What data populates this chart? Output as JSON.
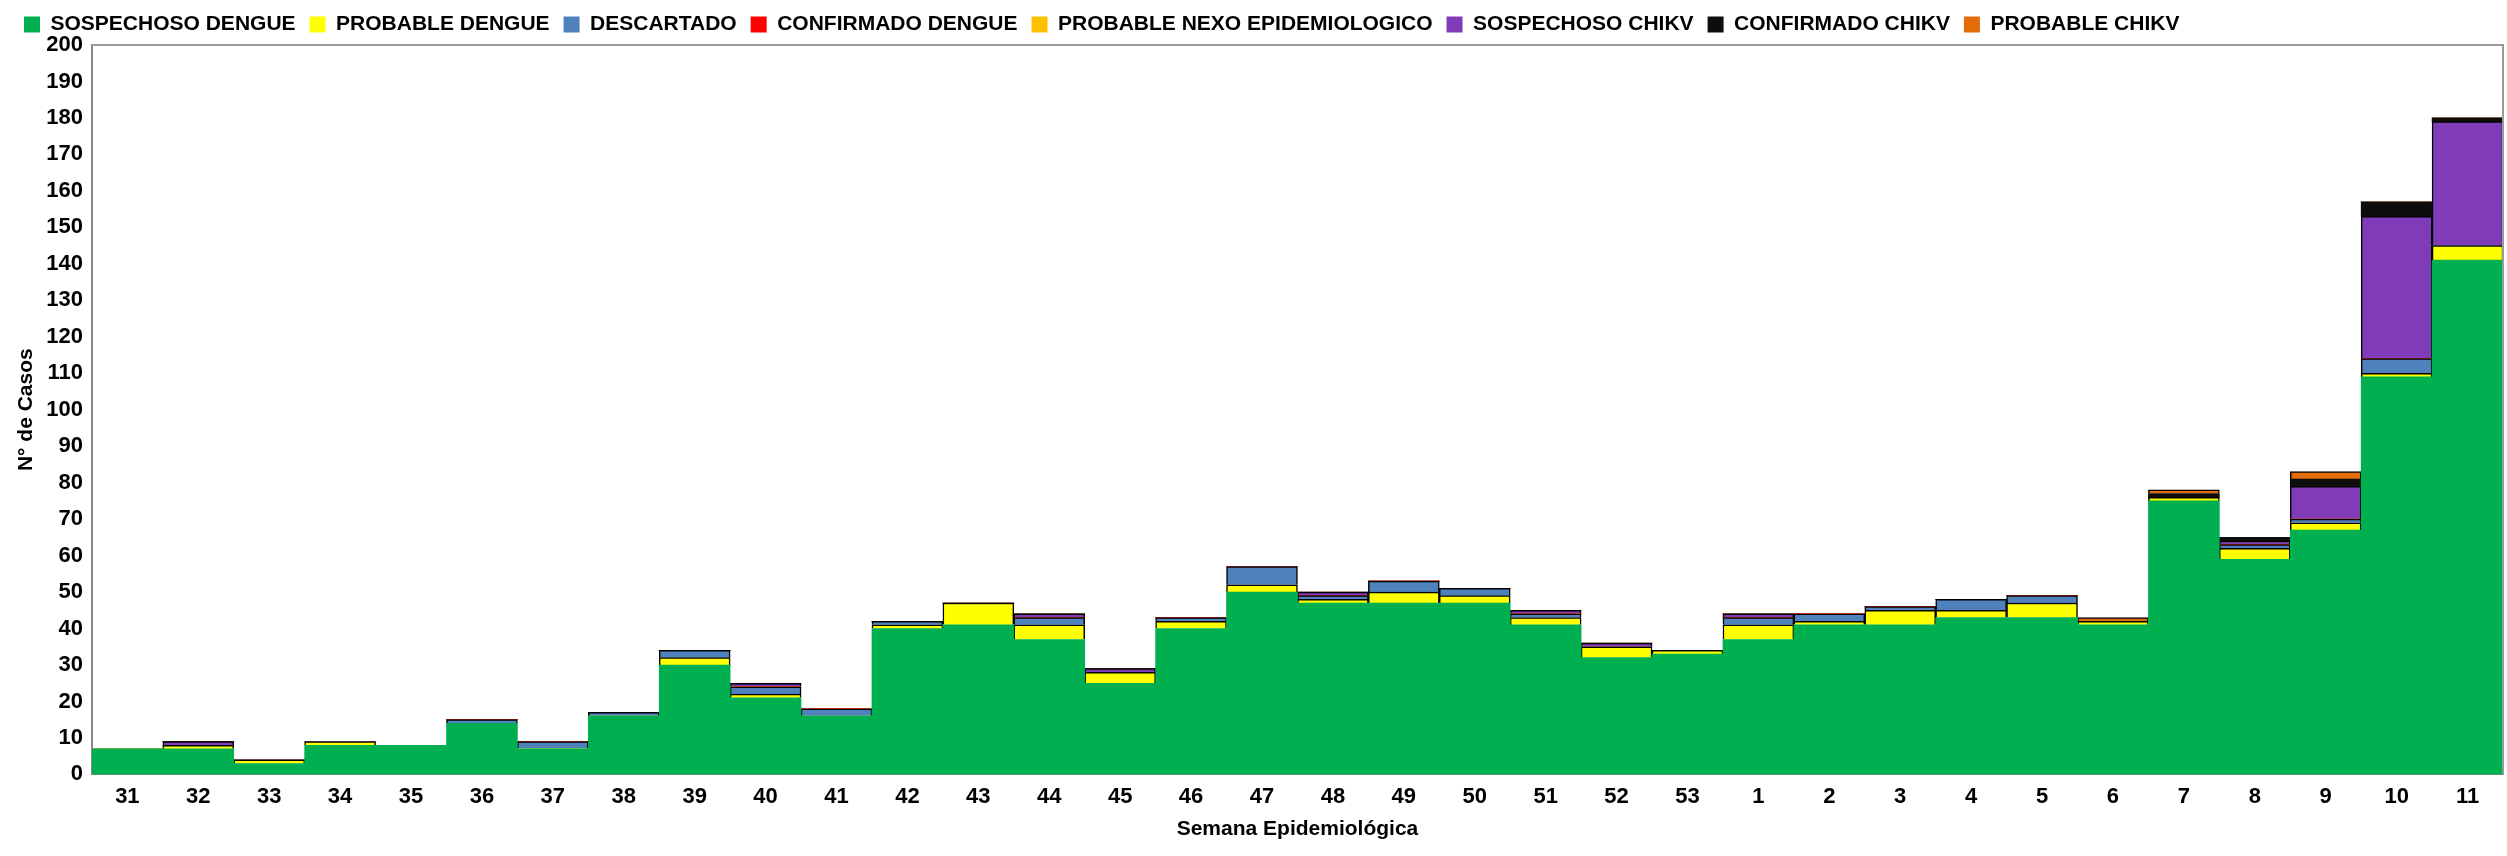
{
  "chart_data": {
    "type": "bar",
    "stacked": true,
    "xlabel": "Semana Epidemiológica",
    "ylabel": "N° de Casos",
    "categories": [
      "31",
      "32",
      "33",
      "34",
      "35",
      "36",
      "37",
      "38",
      "39",
      "40",
      "41",
      "42",
      "43",
      "44",
      "45",
      "46",
      "47",
      "48",
      "49",
      "50",
      "51",
      "52",
      "53",
      "1",
      "2",
      "3",
      "4",
      "5",
      "6",
      "7",
      "8",
      "9",
      "10",
      "11"
    ],
    "ylim": [
      0,
      200
    ],
    "yticks": [
      0,
      10,
      20,
      30,
      40,
      50,
      60,
      70,
      80,
      90,
      100,
      110,
      120,
      130,
      140,
      150,
      160,
      170,
      180,
      190,
      200
    ],
    "grid": false,
    "legend": "top",
    "series": [
      {
        "name": "SOSPECHOSO DENGUE",
        "color": "#00b050",
        "values": [
          7,
          7,
          3,
          8,
          8,
          14,
          7,
          16,
          30,
          21,
          16,
          40,
          41,
          37,
          25,
          40,
          50,
          47,
          47,
          47,
          41,
          32,
          33,
          37,
          41,
          41,
          43,
          43,
          41,
          75,
          59,
          67,
          109,
          141
        ]
      },
      {
        "name": "PROBABLE DENGUE",
        "color": "#ffff00",
        "values": [
          0,
          1,
          1,
          1,
          0,
          0,
          0,
          0,
          2,
          1,
          0,
          1,
          6,
          4,
          3,
          2,
          2,
          1,
          3,
          2,
          2,
          3,
          1,
          4,
          1,
          4,
          2,
          4,
          1,
          1,
          3,
          2,
          1,
          4
        ]
      },
      {
        "name": "DESCARTADO",
        "color": "#4f81bd",
        "values": [
          0,
          0,
          0,
          0,
          0,
          1,
          2,
          1,
          2,
          2,
          2,
          1,
          0,
          2,
          0,
          1,
          5,
          1,
          3,
          2,
          1,
          0,
          0,
          2,
          2,
          1,
          3,
          2,
          0,
          0,
          1,
          1,
          4,
          0
        ]
      },
      {
        "name": "CONFIRMADO DENGUE",
        "color": "#ff0000",
        "values": [
          0,
          0,
          0,
          0,
          0,
          0,
          0,
          0,
          0,
          0,
          0,
          0,
          0,
          0,
          0,
          0,
          0,
          0,
          0,
          0,
          0,
          0,
          0,
          0,
          0,
          0,
          0,
          0,
          0,
          0,
          0,
          0,
          0,
          0
        ]
      },
      {
        "name": "PROBABLE NEXO EPIDEMIOLOGICO",
        "color": "#ffc000",
        "values": [
          0,
          0,
          0,
          0,
          0,
          0,
          0,
          0,
          0,
          0,
          0,
          0,
          0,
          0,
          0,
          0,
          0,
          0,
          0,
          0,
          0,
          0,
          0,
          0,
          0,
          0,
          0,
          0,
          0,
          0,
          0,
          0,
          0,
          0
        ]
      },
      {
        "name": "SOSPECHOSO CHIKV",
        "color": "#7f3bb8",
        "values": [
          0,
          1,
          0,
          0,
          0,
          0,
          0,
          0,
          0,
          1,
          0,
          0,
          0,
          1,
          1,
          0,
          0,
          1,
          0,
          0,
          1,
          1,
          0,
          1,
          0,
          0,
          0,
          0,
          0,
          0,
          1,
          9,
          39,
          34
        ]
      },
      {
        "name": "CONFIRMADO CHIKV",
        "color": "#0d0d0d",
        "values": [
          0,
          0,
          0,
          0,
          0,
          0,
          0,
          0,
          0,
          0,
          0,
          0,
          0,
          0,
          0,
          0,
          0,
          0,
          0,
          0,
          0,
          0,
          0,
          0,
          0,
          0,
          0,
          0,
          0,
          1,
          1,
          2,
          4,
          1
        ]
      },
      {
        "name": "PROBABLE CHIKV",
        "color": "#e46c0a",
        "values": [
          0,
          0,
          0,
          0,
          0,
          0,
          0,
          0,
          0,
          0,
          0,
          0,
          0,
          0,
          0,
          0,
          0,
          0,
          0,
          0,
          0,
          0,
          0,
          0,
          0,
          0,
          0,
          0,
          1,
          1,
          0,
          2,
          0,
          0
        ]
      }
    ]
  }
}
